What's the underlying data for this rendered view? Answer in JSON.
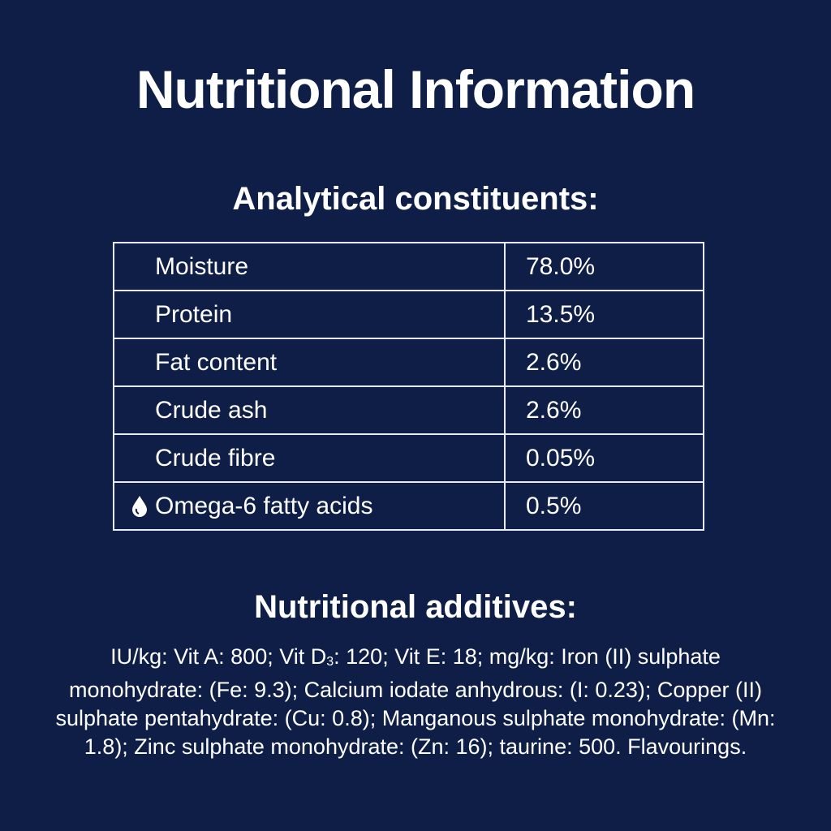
{
  "title": "Nutritional Information",
  "constituents": {
    "heading": "Analytical constituents:",
    "rows": [
      [
        "Moisture",
        "78.0%"
      ],
      [
        "Protein",
        "13.5%"
      ],
      [
        "Fat content",
        "2.6%"
      ],
      [
        "Crude ash",
        "2.6%"
      ],
      [
        "Crude fibre",
        "0.05%"
      ],
      [
        "Omega-6 fatty acids",
        "0.5%"
      ]
    ]
  },
  "additives": {
    "heading": "Nutritional additives:",
    "text": [
      "IU/kg: Vit A: 800; Vit D",
      "3",
      ": 120; Vit E: 18; mg/kg: Iron (II) sulphate monohydrate: (Fe: 9.3); Calcium iodate anhydrous: (I: 0.23); Copper (II) sulphate pentahydrate: (Cu: 0.8); Manganous sulphate monohydrate: (Mn: 1.8); Zinc sulphate monohydrate: (Zn: 16); taurine: 500. Flavourings."
    ]
  }
}
